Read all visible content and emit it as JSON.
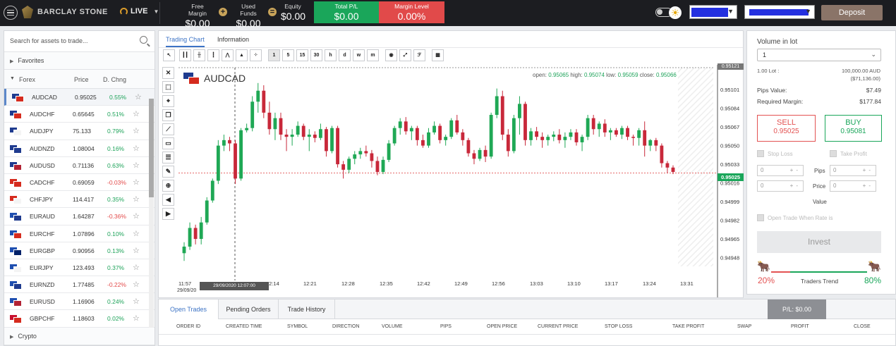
{
  "topbar": {
    "brand": "BARCLAY STONE",
    "mode": "LIVE",
    "free_margin_label": "Free Margin",
    "free_margin": "$0.00",
    "used_funds_label": "Used Funds",
    "used_funds": "$0.00",
    "equity_label": "Equity",
    "equity": "$0.00",
    "total_pl_label": "Total P/L",
    "total_pl": "$0.00",
    "margin_level_label": "Margin Level",
    "margin_level": "0.00%",
    "deposit": "Deposit",
    "colors": {
      "pl": "#1aa65a",
      "margin": "#e14a4a"
    }
  },
  "left": {
    "search_placeholder": "Search for assets to trade...",
    "favorites": "Favorites",
    "group": "Forex",
    "col_price": "Price",
    "col_change": "D. Chng",
    "crypto": "Crypto",
    "rows": [
      {
        "sym": "AUDCAD",
        "price": "0.95025",
        "chg": "0.55%",
        "dir": "up",
        "c1": "#1f3b8f",
        "c2": "#d52b1e"
      },
      {
        "sym": "AUDCHF",
        "price": "0.65645",
        "chg": "0.51%",
        "dir": "up",
        "c1": "#1f3b8f",
        "c2": "#d52b1e"
      },
      {
        "sym": "AUDJPY",
        "price": "75.133",
        "chg": "0.79%",
        "dir": "up",
        "c1": "#1f3b8f",
        "c2": "#f4f4f4"
      },
      {
        "sym": "AUDNZD",
        "price": "1.08004",
        "chg": "0.16%",
        "dir": "up",
        "c1": "#1f3b8f",
        "c2": "#1f3b8f"
      },
      {
        "sym": "AUDUSD",
        "price": "0.71136",
        "chg": "0.63%",
        "dir": "up",
        "c1": "#1f3b8f",
        "c2": "#b22234"
      },
      {
        "sym": "CADCHF",
        "price": "0.69059",
        "chg": "-0.03%",
        "dir": "dn",
        "c1": "#d52b1e",
        "c2": "#d52b1e"
      },
      {
        "sym": "CHFJPY",
        "price": "114.417",
        "chg": "0.35%",
        "dir": "up",
        "c1": "#d52b1e",
        "c2": "#f4f4f4"
      },
      {
        "sym": "EURAUD",
        "price": "1.64287",
        "chg": "-0.36%",
        "dir": "dn",
        "c1": "#1f4fb0",
        "c2": "#1f3b8f"
      },
      {
        "sym": "EURCHF",
        "price": "1.07896",
        "chg": "0.10%",
        "dir": "up",
        "c1": "#1f4fb0",
        "c2": "#d52b1e"
      },
      {
        "sym": "EURGBP",
        "price": "0.90956",
        "chg": "0.13%",
        "dir": "up",
        "c1": "#1f4fb0",
        "c2": "#012169"
      },
      {
        "sym": "EURJPY",
        "price": "123.493",
        "chg": "0.37%",
        "dir": "up",
        "c1": "#1f4fb0",
        "c2": "#f4f4f4"
      },
      {
        "sym": "EURNZD",
        "price": "1.77485",
        "chg": "-0.22%",
        "dir": "dn",
        "c1": "#1f4fb0",
        "c2": "#1f3b8f"
      },
      {
        "sym": "EURUSD",
        "price": "1.16906",
        "chg": "0.24%",
        "dir": "up",
        "c1": "#1f4fb0",
        "c2": "#b22234"
      },
      {
        "sym": "GBPCHF",
        "price": "1.18603",
        "chg": "0.02%",
        "dir": "up",
        "c1": "#c8102e",
        "c2": "#d52b1e"
      }
    ]
  },
  "center": {
    "tab_chart": "Trading Chart",
    "tab_info": "Information",
    "toolbar_intervals": [
      "1",
      "5",
      "15",
      "30",
      "h",
      "d",
      "w",
      "m"
    ],
    "symbol": "AUDCAD",
    "ohlc": {
      "open_label": "open:",
      "open": "0.95065",
      "high_label": "high:",
      "high": "0.95074",
      "low_label": "low:",
      "low": "0.95059",
      "close_label": "close:",
      "close": "0.95066"
    },
    "crosshair_time": "29/09/2020 12:07:00",
    "current_price": "0.95025",
    "top_price": "0.95121"
  },
  "chart_data": {
    "type": "candlestick",
    "symbol": "AUDCAD",
    "x_ticks": [
      "11:57",
      "12:07",
      "12:14",
      "12:21",
      "12:28",
      "12:35",
      "12:42",
      "12:49",
      "12:56",
      "13:03",
      "13:10",
      "13:17",
      "13:24",
      "13:31"
    ],
    "x_date_label": "29/09/20",
    "y_ticks": [
      0.95101,
      0.95084,
      0.95067,
      0.9505,
      0.95033,
      0.95016,
      0.94999,
      0.94982,
      0.94965,
      0.94948
    ],
    "ylim": [
      0.9494,
      0.95121
    ],
    "current": 0.95025,
    "colors": {
      "up": "#1fa855",
      "down": "#c8283a"
    },
    "candles": [
      [
        0.94952,
        0.94962,
        0.94945,
        0.94958
      ],
      [
        0.94958,
        0.9498,
        0.94955,
        0.94975
      ],
      [
        0.94975,
        0.94978,
        0.9496,
        0.94965
      ],
      [
        0.94965,
        0.94985,
        0.9496,
        0.9498
      ],
      [
        0.9498,
        0.95003,
        0.94978,
        0.95
      ],
      [
        0.95,
        0.9502,
        0.94998,
        0.95018
      ],
      [
        0.95018,
        0.95055,
        0.95015,
        0.9505
      ],
      [
        0.9505,
        0.9506,
        0.95045,
        0.95055
      ],
      [
        0.95055,
        0.95058,
        0.95045,
        0.95052
      ],
      [
        0.95052,
        0.95055,
        0.95015,
        0.9502
      ],
      [
        0.9502,
        0.95066,
        0.95018,
        0.95064
      ],
      [
        0.95064,
        0.9507,
        0.95062,
        0.95066
      ],
      [
        0.95066,
        0.95095,
        0.95063,
        0.9509
      ],
      [
        0.9509,
        0.95107,
        0.9508,
        0.951
      ],
      [
        0.951,
        0.95105,
        0.95075,
        0.9508
      ],
      [
        0.9508,
        0.9509,
        0.9506,
        0.95065
      ],
      [
        0.95065,
        0.9508,
        0.95055,
        0.95075
      ],
      [
        0.95075,
        0.9508,
        0.95055,
        0.9506
      ],
      [
        0.9506,
        0.95065,
        0.95045,
        0.95058
      ],
      [
        0.95058,
        0.95065,
        0.9505,
        0.9506
      ],
      [
        0.9506,
        0.95072,
        0.95058,
        0.95068
      ],
      [
        0.95068,
        0.9507,
        0.95055,
        0.95058
      ],
      [
        0.95058,
        0.95065,
        0.95045,
        0.9506
      ],
      [
        0.9506,
        0.95063,
        0.95053,
        0.95057
      ],
      [
        0.95057,
        0.9507,
        0.95055,
        0.95065
      ],
      [
        0.95065,
        0.95067,
        0.9504,
        0.95045
      ],
      [
        0.95045,
        0.95068,
        0.95043,
        0.95066
      ],
      [
        0.95066,
        0.95068,
        0.9503,
        0.95033
      ],
      [
        0.95033,
        0.95036,
        0.9502,
        0.95028
      ],
      [
        0.95028,
        0.9504,
        0.95025,
        0.95038
      ],
      [
        0.95038,
        0.95045,
        0.95033,
        0.95042
      ],
      [
        0.95042,
        0.95048,
        0.95038,
        0.95045
      ],
      [
        0.95045,
        0.9505,
        0.9504,
        0.95043
      ],
      [
        0.95043,
        0.95046,
        0.9503,
        0.95036
      ],
      [
        0.95036,
        0.9504,
        0.95023,
        0.95026
      ],
      [
        0.95026,
        0.9504,
        0.95024,
        0.95037
      ],
      [
        0.95037,
        0.95055,
        0.95035,
        0.95052
      ],
      [
        0.95052,
        0.95068,
        0.9505,
        0.95066
      ],
      [
        0.95066,
        0.95075,
        0.9506,
        0.95072
      ],
      [
        0.95072,
        0.95076,
        0.9506,
        0.95063
      ],
      [
        0.95063,
        0.95068,
        0.95055,
        0.95066
      ],
      [
        0.95066,
        0.95068,
        0.9505,
        0.95055
      ],
      [
        0.95055,
        0.9506,
        0.95048,
        0.9505
      ],
      [
        0.9505,
        0.95066,
        0.95048,
        0.95062
      ],
      [
        0.95062,
        0.95072,
        0.9506,
        0.95068
      ],
      [
        0.95068,
        0.9507,
        0.95052,
        0.95055
      ],
      [
        0.95055,
        0.9506,
        0.9505,
        0.95058
      ],
      [
        0.95058,
        0.95075,
        0.95056,
        0.95073
      ],
      [
        0.95073,
        0.95078,
        0.9506,
        0.95062
      ],
      [
        0.95062,
        0.95065,
        0.9505,
        0.95055
      ],
      [
        0.95055,
        0.95057,
        0.9504,
        0.95043
      ],
      [
        0.95043,
        0.95046,
        0.95033,
        0.95038
      ],
      [
        0.95038,
        0.95048,
        0.95036,
        0.95046
      ],
      [
        0.95046,
        0.9505,
        0.95035,
        0.9504
      ],
      [
        0.9504,
        0.9508,
        0.95038,
        0.95078
      ],
      [
        0.95078,
        0.95102,
        0.95075,
        0.95095
      ],
      [
        0.95095,
        0.951,
        0.95055,
        0.9506
      ],
      [
        0.9506,
        0.95065,
        0.9504,
        0.95045
      ],
      [
        0.95045,
        0.95078,
        0.95043,
        0.95075
      ],
      [
        0.95075,
        0.95095,
        0.9506,
        0.95088
      ],
      [
        0.95088,
        0.9509,
        0.9505,
        0.95055
      ],
      [
        0.95055,
        0.95066,
        0.9505,
        0.95063
      ],
      [
        0.95063,
        0.95067,
        0.95055,
        0.95058
      ],
      [
        0.95058,
        0.95062,
        0.95048,
        0.95055
      ],
      [
        0.95055,
        0.9506,
        0.9505,
        0.95058
      ],
      [
        0.95058,
        0.95063,
        0.95054,
        0.9506
      ],
      [
        0.9506,
        0.95065,
        0.95052,
        0.95055
      ],
      [
        0.95055,
        0.95062,
        0.95048,
        0.95058
      ],
      [
        0.95058,
        0.95065,
        0.95055,
        0.95062
      ],
      [
        0.95062,
        0.95065,
        0.9505,
        0.95053
      ],
      [
        0.95053,
        0.9506,
        0.95045,
        0.95058
      ],
      [
        0.95058,
        0.95078,
        0.95055,
        0.95075
      ],
      [
        0.95075,
        0.95078,
        0.9506,
        0.95065
      ],
      [
        0.95065,
        0.95072,
        0.95058,
        0.9507
      ],
      [
        0.9507,
        0.95074,
        0.95058,
        0.95062
      ],
      [
        0.95062,
        0.95066,
        0.95055,
        0.95064
      ],
      [
        0.95064,
        0.95066,
        0.95058,
        0.9506
      ],
      [
        0.9506,
        0.95068,
        0.95056,
        0.95066
      ],
      [
        0.95066,
        0.95068,
        0.95055,
        0.95058
      ],
      [
        0.95058,
        0.9506,
        0.9505,
        0.95057
      ],
      [
        0.95057,
        0.95066,
        0.9505,
        0.95064
      ],
      [
        0.95064,
        0.95072,
        0.9504,
        0.9505
      ],
      [
        0.9505,
        0.95056,
        0.95045,
        0.95055
      ],
      [
        0.95055,
        0.95057,
        0.95045,
        0.9505
      ],
      [
        0.9505,
        0.95052,
        0.9503,
        0.95034
      ],
      [
        0.95034,
        0.95036,
        0.95025,
        0.9503
      ],
      [
        0.9503,
        0.95032,
        0.95024,
        0.95026
      ]
    ]
  },
  "bottom": {
    "tabs": [
      "Open Trades",
      "Pending Orders",
      "Trade History"
    ],
    "pl_badge": "P/L: $0.00",
    "columns": [
      "ORDER ID",
      "CREATED TIME",
      "SYMBOL",
      "DIRECTION",
      "VOLUME",
      "PIPS",
      "OPEN PRICE",
      "CURRENT PRICE",
      "STOP LOSS",
      "TAKE PROFIT",
      "SWAP",
      "PROFIT",
      "CLOSE"
    ]
  },
  "right": {
    "title": "Volume in lot",
    "lot": "1",
    "lot_label": "1.00 Lot :",
    "lot_value": "100,000.00 AUD",
    "lot_value_usd": "($71,136.00)",
    "pips_label": "Pips Value:",
    "pips_value": "$7.49",
    "margin_label": "Required Margin:",
    "margin_value": "$177.84",
    "sell_label": "SELL",
    "sell_price": "0.95025",
    "buy_label": "BUY",
    "buy_price": "0.95081",
    "stop_loss": "Stop Loss",
    "take_profit": "Take Profit",
    "field_value": "0",
    "pips": "Pips",
    "price": "Price",
    "value": "Value",
    "open_when": "Open Trade When Rate is",
    "invest": "Invest",
    "sell_pct": "20%",
    "buy_pct": "80%",
    "trend_label": "Traders Trend"
  }
}
